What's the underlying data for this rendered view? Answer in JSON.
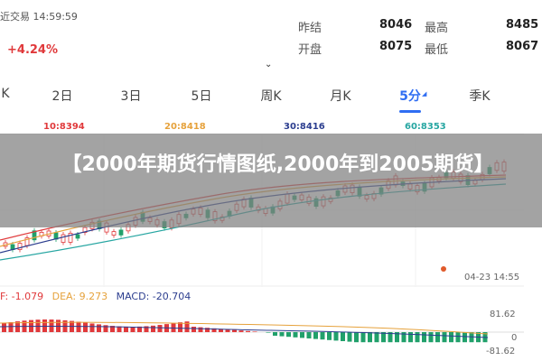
{
  "header": {
    "status_time": "近交易 14:59:59",
    "change_pct": "+4.24%",
    "stats": [
      {
        "label": "昨结",
        "value": "8046"
      },
      {
        "label": "最高",
        "value": "8485"
      },
      {
        "label": "开盘",
        "value": "8075"
      },
      {
        "label": "最低",
        "value": "8067"
      }
    ]
  },
  "tabs": [
    "K",
    "2日",
    "3日",
    "5日",
    "周K",
    "月K",
    "5分",
    "季K"
  ],
  "active_tab": "5分",
  "ma": [
    {
      "label": "10:8394",
      "color": "#e0393b"
    },
    {
      "label": "20:8418",
      "color": "#e6a23c"
    },
    {
      "label": "30:8416",
      "color": "#2c3e8f"
    },
    {
      "label": "60:8353",
      "color": "#27a6a2"
    }
  ],
  "chart": {
    "date_label": "04-23 14:55"
  },
  "macd": {
    "dif": "F: -1.079",
    "dea": "DEA: 9.273",
    "macd": "MACD: -20.704",
    "axis_top": "81.62",
    "axis_mid": "0",
    "axis_bottom": "-81.62"
  },
  "colors": {
    "up": "#e0393b",
    "down": "#21a06b",
    "accent": "#2f6df2"
  },
  "banner": {
    "title": "【2000年期货行情图纸,2000年到2005期货】"
  }
}
